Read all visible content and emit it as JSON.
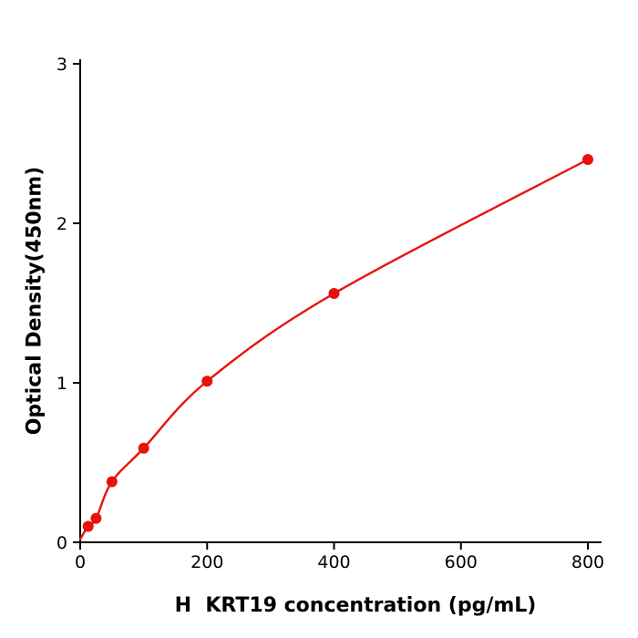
{
  "chart_data": {
    "type": "scatter",
    "title": "",
    "xlabel": "H  KRT19 concentration (pg/mL)",
    "ylabel": "Optical Density(450nm)",
    "x": [
      12.5,
      25,
      50,
      100,
      200,
      400,
      800
    ],
    "y": [
      0.1,
      0.15,
      0.38,
      0.59,
      1.01,
      1.56,
      2.4
    ],
    "curve_start_x": 0,
    "curve_start_y": 0.02,
    "xlim": [
      0,
      800
    ],
    "ylim": [
      0,
      3
    ],
    "x_ticks": [
      0,
      200,
      400,
      600,
      800
    ],
    "y_ticks": [
      0,
      1,
      2,
      3
    ],
    "line_color": "#e8120b",
    "marker_color": "#e8120b",
    "axis_color": "#000000",
    "grid": false,
    "legend": false,
    "marker_radius": 6,
    "tick_font_size": 19
  }
}
